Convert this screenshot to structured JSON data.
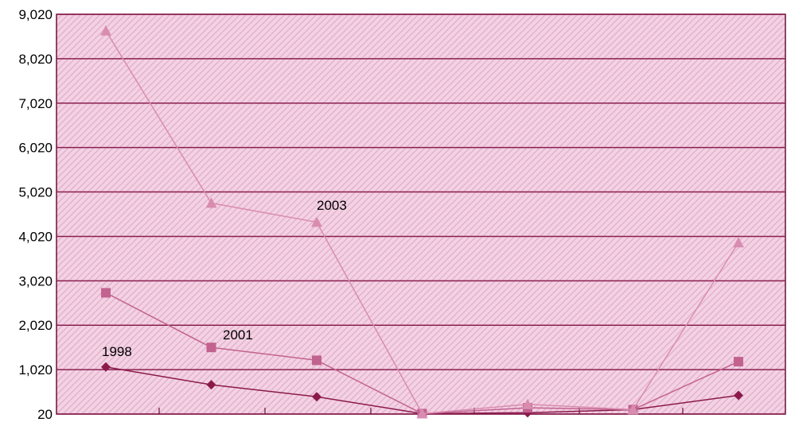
{
  "colors": {
    "plot_bg": "#f3d2e4",
    "hatch": "#e4b2cc",
    "gridline": "#8a1f4f",
    "axis": "#6a0f3a",
    "series_1998": "#8b1a4a",
    "series_2001": "#c2638f",
    "series_2003": "#d88db0"
  },
  "chart_data": {
    "type": "line",
    "title": "",
    "xlabel": "",
    "ylabel": "",
    "ylim": [
      20,
      9020
    ],
    "y_ticks": [
      "20",
      "1,020",
      "2,020",
      "3,020",
      "4,020",
      "5,020",
      "6,020",
      "7,020",
      "8,020",
      "9,020"
    ],
    "x": [
      1,
      2,
      3,
      4,
      5,
      6,
      7
    ],
    "grid": "horizontal",
    "legend": "none",
    "series": [
      {
        "name": "1998",
        "marker": "diamond",
        "values": [
          1080,
          680,
          410,
          30,
          50,
          120,
          440
        ]
      },
      {
        "name": "2001",
        "marker": "square",
        "values": [
          2750,
          1520,
          1230,
          30,
          160,
          120,
          1200
        ]
      },
      {
        "name": "2003",
        "marker": "triangle",
        "values": [
          8650,
          4770,
          4340,
          30,
          240,
          120,
          3880
        ]
      }
    ]
  }
}
